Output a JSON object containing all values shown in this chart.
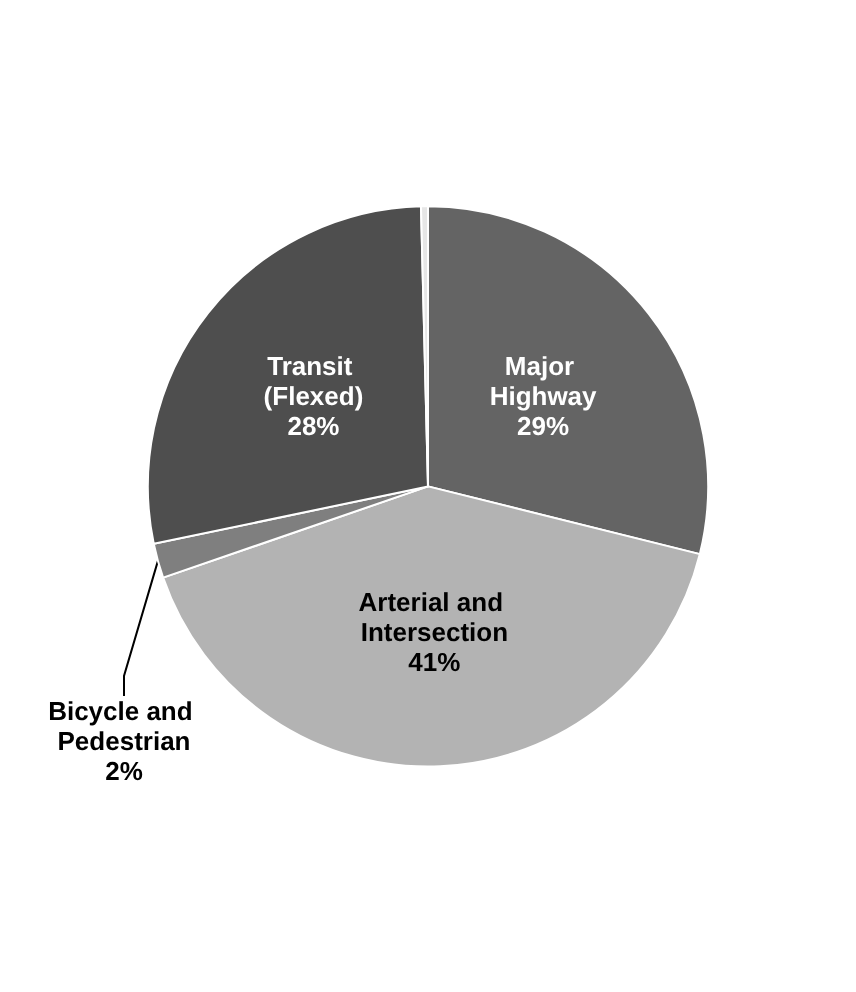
{
  "chart_data": {
    "type": "pie",
    "categories": [
      "Major Highway",
      "Arterial and Intersection",
      "Bicycle and Pedestrian",
      "Transit (Flexed)",
      null
    ],
    "values": [
      29,
      41,
      2,
      28,
      0.4
    ],
    "colors": [
      "#646464",
      "#b3b3b3",
      "#7f7f7f",
      "#4e4e4e",
      "#e6e6e6"
    ],
    "value_labels": [
      "29%",
      "41%",
      "2%",
      "28%",
      null
    ],
    "legend": false
  }
}
